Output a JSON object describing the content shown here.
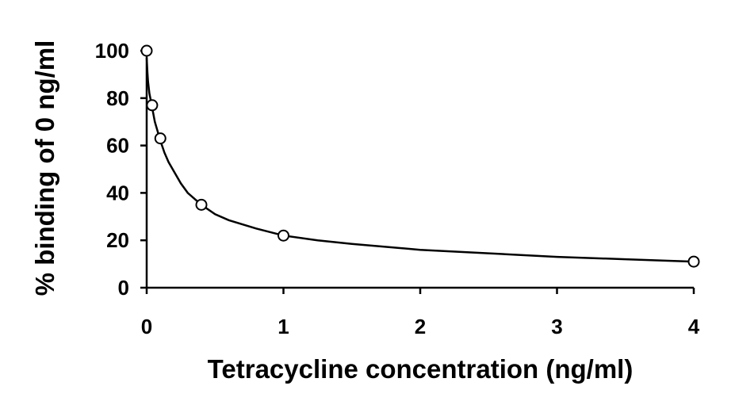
{
  "chart_data": {
    "type": "scatter",
    "title": "",
    "xlabel": "Tetracycline concentration (ng/ml)",
    "ylabel": "% binding of 0 ng/ml",
    "xlim": [
      0,
      4
    ],
    "ylim": [
      0,
      100
    ],
    "x_ticks": [
      "0",
      "1",
      "2",
      "3",
      "4"
    ],
    "y_ticks": [
      "0",
      "20",
      "40",
      "60",
      "80",
      "100"
    ],
    "grid": false,
    "legend": "none",
    "series": [
      {
        "x": [
          0,
          0.04,
          0.1,
          0.4,
          1,
          4
        ],
        "y": [
          100,
          77,
          63,
          35,
          22,
          11
        ]
      }
    ],
    "fit_curve": {
      "x": [
        0,
        0.005,
        0.01,
        0.02,
        0.03,
        0.04,
        0.06,
        0.08,
        0.1,
        0.13,
        0.16,
        0.2,
        0.25,
        0.3,
        0.4,
        0.5,
        0.6,
        0.8,
        1,
        1.25,
        1.5,
        2,
        2.5,
        3,
        3.5,
        4
      ],
      "y": [
        97,
        91,
        87,
        82,
        79,
        76,
        70,
        66,
        62,
        57,
        53,
        49,
        44,
        40,
        35,
        31,
        28.5,
        25,
        22,
        20,
        18.5,
        16,
        14.5,
        13,
        12,
        11
      ]
    },
    "colors": {
      "axis": "#000000",
      "curve": "#000000",
      "marker": "#000000",
      "background": "#ffffff"
    }
  }
}
